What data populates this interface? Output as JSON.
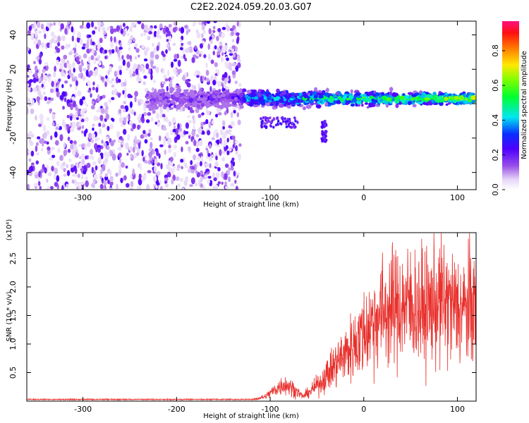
{
  "title": "C2E2.2024.059.20.03.G07",
  "chart_data": [
    {
      "type": "heatmap",
      "xlabel": "Height of straight line (km)",
      "ylabel": "Frequency (Hz)",
      "xlim": [
        -360,
        120
      ],
      "ylim": [
        -50,
        48
      ],
      "xticks": [
        -300,
        -200,
        -100,
        0,
        100
      ],
      "yticks": [
        -40,
        -20,
        0,
        20,
        40
      ],
      "colorbar": {
        "label": "Normalized spectral amplitude",
        "range": [
          0,
          0.97
        ],
        "ticks": [
          "0.0",
          "0.2",
          "0.4",
          "0.6",
          "0.8"
        ],
        "colormap": "rainbow: white-lavender, purple, blue, cyan, green, yellow, orange, red, magenta"
      },
      "regions": [
        {
          "description": "scattered low-amplitude noise across full frequency band",
          "x_range": [
            -360,
            -132
          ],
          "y_range": [
            -50,
            48
          ],
          "amplitude": "0.05-0.25"
        },
        {
          "description": "narrow band centered near 2-3 Hz",
          "x_range": [
            -230,
            120
          ],
          "center_y": 3,
          "amplitude": "0.3-0.85"
        },
        {
          "description": "downward streak",
          "x_range": [
            -45,
            -40
          ],
          "y_range": [
            -22,
            -10
          ],
          "amplitude": "0.15-0.25"
        }
      ]
    },
    {
      "type": "line",
      "xlabel": "Height of straight line (km)",
      "ylabel": "SNR (10 * v/v)",
      "y_scale_label": "(x10⁴)",
      "xlim": [
        -360,
        120
      ],
      "ylim": [
        0,
        2.95
      ],
      "xticks": [
        -300,
        -200,
        -100,
        0,
        100
      ],
      "yticks": [
        "0.5",
        "1.0",
        "1.5",
        "2.0",
        "2.5"
      ],
      "color": "#e8302c",
      "series": [
        {
          "x": [
            -360,
            -120,
            -105,
            -95,
            -85,
            -75,
            -65,
            -55,
            -45,
            -35,
            -25,
            -15,
            -5,
            5,
            15,
            25,
            35,
            45,
            55,
            65,
            75,
            85,
            95,
            105,
            115,
            120
          ],
          "y": [
            0.02,
            0.02,
            0.08,
            0.2,
            0.3,
            0.22,
            0.08,
            0.2,
            0.35,
            0.55,
            0.75,
            0.9,
            1.1,
            1.3,
            1.5,
            1.6,
            1.65,
            1.7,
            1.65,
            1.6,
            1.7,
            1.75,
            1.65,
            1.6,
            1.65,
            1.7
          ]
        }
      ]
    }
  ]
}
